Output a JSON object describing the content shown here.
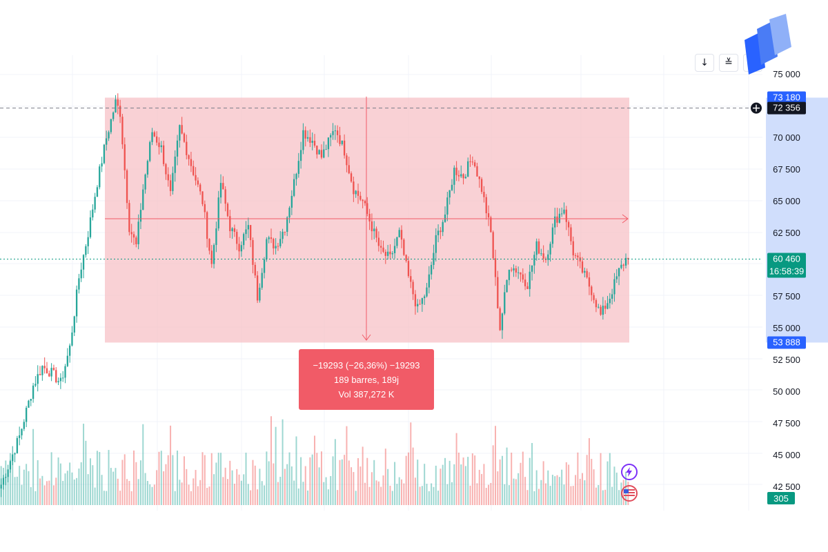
{
  "toolbar": {
    "arrow_down_icon": "arrow-down-icon",
    "collapse_icon": "collapse-icon"
  },
  "measure": {
    "line1": "−19293 (−26,36%) −19293",
    "line2": "189 barres, 189j",
    "line3": "Vol 387,272 K"
  },
  "price_tags": {
    "range_high": "73 180",
    "crosshair": "72 356",
    "last_price": "60 460",
    "countdown": "16:58:39",
    "range_low": "53 888",
    "volume": "305"
  },
  "colors": {
    "up": "#26a69a",
    "down": "#ef5350",
    "range_fill": "#f7c1c7",
    "axis_highlight": "#c8d8fb",
    "tag_blue": "#2962ff",
    "tag_green": "#089981",
    "measure_bg": "#f15b67"
  },
  "chart_data": {
    "type": "candlestick",
    "y_ticks": [
      "75 000",
      "70 000",
      "67 500",
      "65 000",
      "62 500",
      "57 500",
      "55 000",
      "52 500",
      "50 000",
      "47 500",
      "45 000",
      "42 500"
    ],
    "ylim": [
      42000,
      77000
    ],
    "range_box": {
      "top": 73180,
      "bottom": 53888,
      "bars": 189
    },
    "current_price": 60460,
    "crosshair_price": 72356,
    "bars": 185,
    "volume_max_ratio": 1.0,
    "price_path_anchors": [
      [
        0,
        42700
      ],
      [
        8,
        46500
      ],
      [
        14,
        50500
      ],
      [
        18,
        52000
      ],
      [
        22,
        51500
      ],
      [
        26,
        50700
      ],
      [
        30,
        53500
      ],
      [
        34,
        59000
      ],
      [
        38,
        62500
      ],
      [
        42,
        66500
      ],
      [
        46,
        70000
      ],
      [
        50,
        72800
      ],
      [
        52,
        72000
      ],
      [
        56,
        63000
      ],
      [
        59,
        61500
      ],
      [
        62,
        66000
      ],
      [
        66,
        70500
      ],
      [
        70,
        69200
      ],
      [
        74,
        65500
      ],
      [
        78,
        70800
      ],
      [
        82,
        68500
      ],
      [
        88,
        65000
      ],
      [
        92,
        60000
      ],
      [
        96,
        66500
      ],
      [
        100,
        63000
      ],
      [
        104,
        61500
      ],
      [
        108,
        63000
      ],
      [
        112,
        57500
      ],
      [
        116,
        62000
      ],
      [
        120,
        61500
      ],
      [
        124,
        63000
      ],
      [
        128,
        66500
      ],
      [
        132,
        70500
      ],
      [
        136,
        69800
      ],
      [
        140,
        68500
      ],
      [
        146,
        70800
      ],
      [
        150,
        69000
      ],
      [
        154,
        66000
      ],
      [
        158,
        65000
      ],
      [
        162,
        63000
      ],
      [
        166,
        61000
      ],
      [
        170,
        60500
      ],
      [
        174,
        62500
      ],
      [
        178,
        59000
      ],
      [
        182,
        56500
      ],
      [
        186,
        58000
      ],
      [
        190,
        62000
      ],
      [
        194,
        64000
      ],
      [
        198,
        67500
      ],
      [
        202,
        67000
      ],
      [
        206,
        68500
      ],
      [
        210,
        66000
      ],
      [
        214,
        62500
      ],
      [
        218,
        55000
      ],
      [
        222,
        60000
      ],
      [
        226,
        59500
      ],
      [
        230,
        58500
      ],
      [
        234,
        61500
      ],
      [
        238,
        60500
      ],
      [
        242,
        63500
      ],
      [
        246,
        64500
      ],
      [
        250,
        61000
      ],
      [
        254,
        59500
      ],
      [
        258,
        58000
      ],
      [
        262,
        56000
      ],
      [
        266,
        57500
      ],
      [
        270,
        59500
      ],
      [
        274,
        60800
      ]
    ]
  }
}
